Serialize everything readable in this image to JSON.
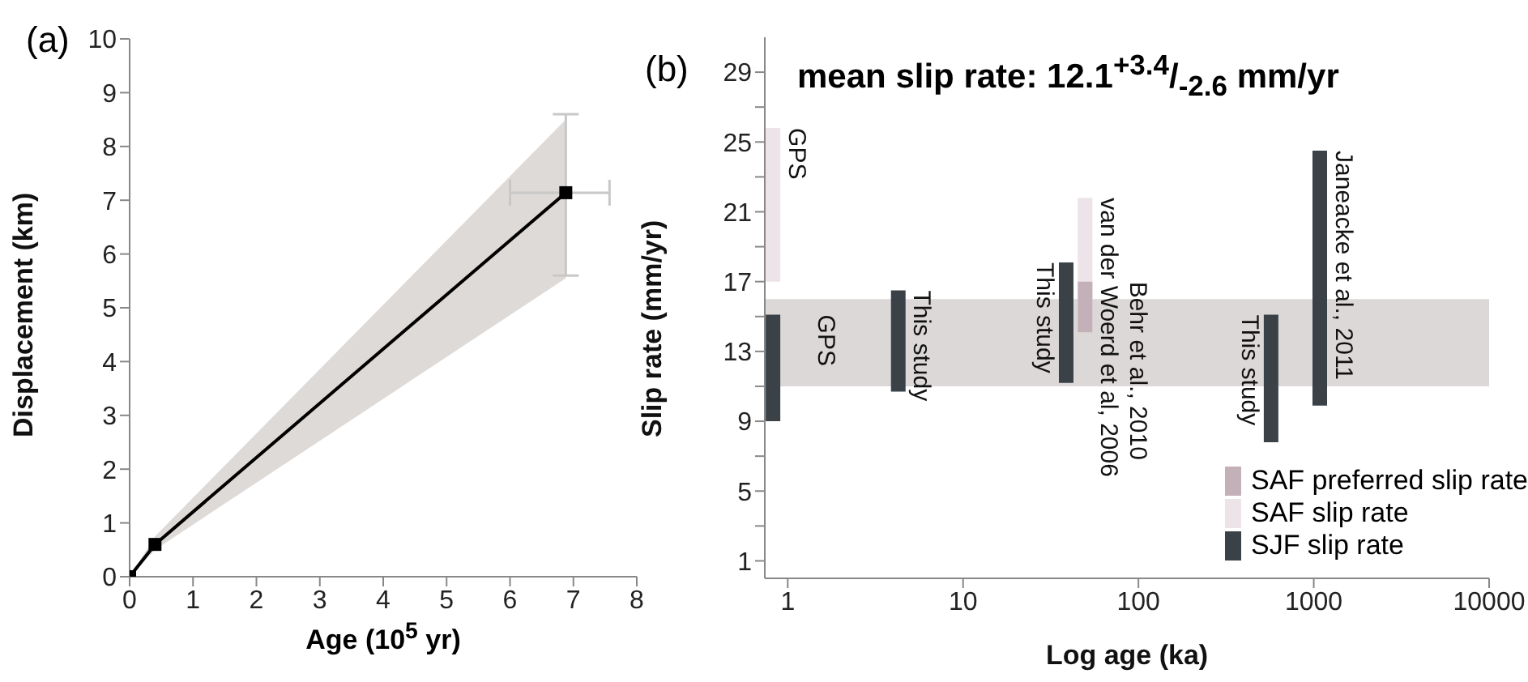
{
  "chart_data": [
    {
      "type": "line",
      "annotations": [
        "(a)"
      ],
      "xlabel": "Age (10$^{5}$ yr)",
      "ylabel": "Displacement (km)",
      "x": [
        0,
        0.4,
        6.88
      ],
      "series": [
        {
          "color": "#000000",
          "values": [
            0,
            0.6,
            7.14
          ],
          "lower": [
            0,
            0.5,
            5.55
          ],
          "upper": [
            0,
            0.75,
            8.5
          ],
          "errors": [
            null,
            null,
            [
              5.6,
              8.6
            ]
          ],
          "xerrors": [
            null,
            null,
            [
              6.0,
              7.57
            ]
          ]
        }
      ],
      "xlim": [
        0,
        8
      ],
      "xticks": [
        0,
        1,
        2,
        3,
        4,
        5,
        6,
        7,
        8
      ],
      "ylim": [
        0,
        10
      ],
      "yticks": [
        0,
        1,
        2,
        3,
        4,
        5,
        6,
        7,
        8,
        9,
        10
      ],
      "marker": "square",
      "grid": false
    },
    {
      "type": "bar",
      "title": "mean slip rate: 12.1$^{+3.4}$/$_{-2.6}$ mm/yr",
      "xlabel": "Log age (ka)",
      "ylabel": "Slip rate (mm/yr)",
      "log": "x",
      "annotations": [
        "(b)",
        {
          "text": "GPS",
          "x": 0.83,
          "y": 25.8
        },
        {
          "text": "GPS",
          "x": 0.83,
          "y": 15.1
        },
        {
          "text": "This study",
          "x": 4.3,
          "y": 16.5
        },
        {
          "text": "This study",
          "x": 39,
          "y": 18.1
        },
        {
          "text": "van der Woerd et al, 2006",
          "x": 50,
          "y": 21.8
        },
        {
          "text": "Behr et al., 2010",
          "x": 50,
          "y": 17
        },
        {
          "text": "This study",
          "x": 575,
          "y": 15.1
        },
        {
          "text": "Janeacke et al., 2011",
          "x": 1090,
          "y": 24.5
        }
      ],
      "series": [
        {
          "name": "SAF preferred slip rate",
          "color": "#c4b0b8",
          "x": [
            50
          ],
          "base": [
            14.1
          ],
          "values": [
            2.9
          ]
        },
        {
          "name": "SAF slip rate",
          "color": "#ece4e8",
          "x": [
            0.83,
            50
          ],
          "base": [
            17,
            14.1
          ],
          "values": [
            8.8,
            7.7
          ]
        },
        {
          "name": "SJF slip rate",
          "color": "#3a4248",
          "x": [
            0.83,
            4.3,
            39,
            575,
            1090
          ],
          "base": [
            9,
            10.7,
            11.2,
            7.8,
            9.9
          ],
          "values": [
            6.1,
            5.8,
            6.9,
            7.3,
            14.6
          ]
        }
      ],
      "bands": [
        {
          "axis": "y",
          "from": 11,
          "to": 16,
          "color": "#bcb4b2"
        }
      ],
      "xlim": [
        0.74,
        10000
      ],
      "xticks": [
        1,
        10,
        100,
        1000,
        10000
      ],
      "ylim": [
        0,
        31
      ],
      "yticks": [
        1,
        {
          "value": 3,
          "label": null
        },
        5,
        {
          "value": 7,
          "label": null
        },
        9,
        {
          "value": 11,
          "label": null
        },
        13,
        {
          "value": 15,
          "label": null
        },
        17,
        {
          "value": 19,
          "label": null
        },
        21,
        {
          "value": 23,
          "label": null
        },
        25,
        {
          "value": 27,
          "label": null
        },
        29
      ],
      "legend": "bottom right",
      "grid": false
    }
  ]
}
